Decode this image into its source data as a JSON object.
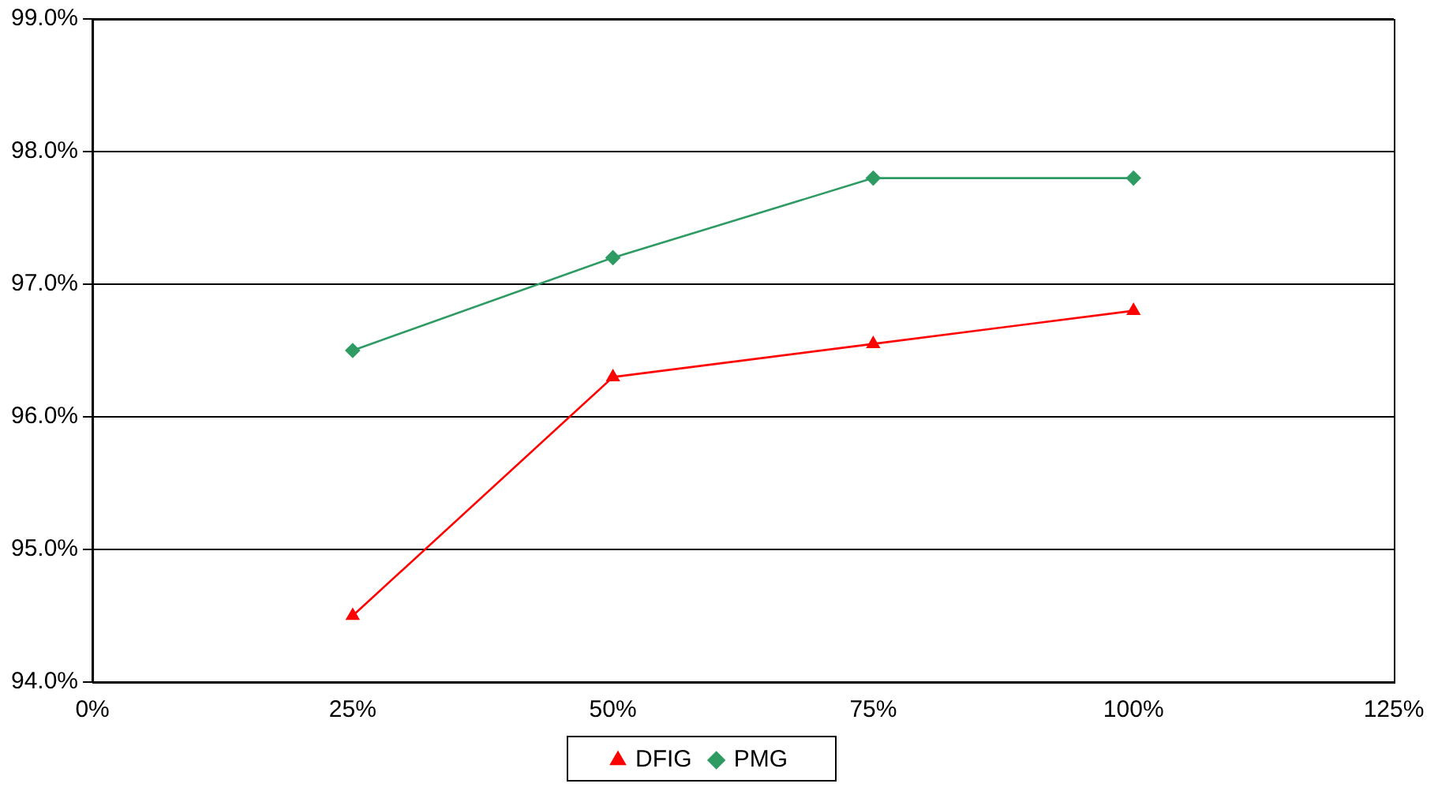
{
  "chart_data": {
    "type": "line",
    "x": [
      25,
      50,
      75,
      100
    ],
    "series": [
      {
        "name": "DFIG",
        "color": "#ff0000",
        "marker": "triangle",
        "values": [
          94.5,
          96.3,
          96.55,
          96.8
        ]
      },
      {
        "name": "PMG",
        "color": "#2e9b63",
        "marker": "diamond",
        "values": [
          96.5,
          97.2,
          97.8,
          97.8
        ]
      }
    ],
    "xlim": [
      0,
      125
    ],
    "xticks": [
      {
        "value": 0,
        "label": "0%"
      },
      {
        "value": 25,
        "label": "25%"
      },
      {
        "value": 50,
        "label": "50%"
      },
      {
        "value": 75,
        "label": "75%"
      },
      {
        "value": 100,
        "label": "100%"
      },
      {
        "value": 125,
        "label": "125%"
      }
    ],
    "ylim": [
      94,
      99
    ],
    "yticks": [
      {
        "value": 94,
        "label": "94.0%"
      },
      {
        "value": 95,
        "label": "95.0%"
      },
      {
        "value": 96,
        "label": "96.0%"
      },
      {
        "value": 97,
        "label": "97.0%"
      },
      {
        "value": 98,
        "label": "98.0%"
      },
      {
        "value": 99,
        "label": "99.0%"
      }
    ],
    "grid": "y",
    "legend": "bottom",
    "line_style": "solid"
  }
}
